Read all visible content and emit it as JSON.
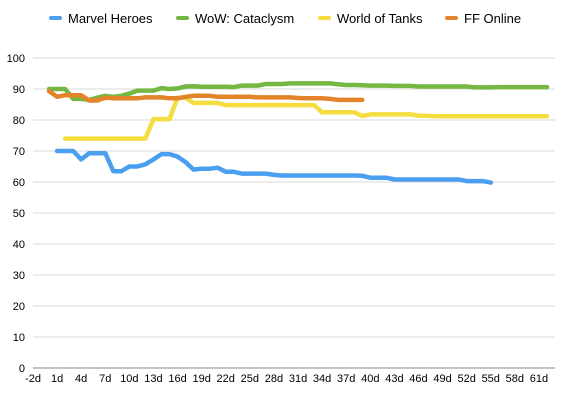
{
  "chart_data": {
    "type": "line",
    "title": "",
    "xlabel": "",
    "ylabel": "",
    "xlim": [
      -2,
      63
    ],
    "ylim": [
      0,
      100
    ],
    "x_ticks": [
      "-2d",
      "1d",
      "4d",
      "7d",
      "10d",
      "13d",
      "16d",
      "19d",
      "22d",
      "25d",
      "28d",
      "31d",
      "34d",
      "37d",
      "40d",
      "43d",
      "46d",
      "49d",
      "52d",
      "55d",
      "58d",
      "61d"
    ],
    "y_ticks": [
      0,
      10,
      20,
      30,
      40,
      50,
      60,
      70,
      80,
      90,
      100
    ],
    "grid": "horizontal",
    "legend_position": "top",
    "series": [
      {
        "name": "Marvel Heroes",
        "color": "#4A9FF0",
        "x": [
          1,
          2,
          3,
          4,
          5,
          6,
          7,
          8,
          9,
          10,
          11,
          12,
          13,
          14,
          15,
          16,
          17,
          18,
          19,
          20,
          21,
          22,
          23,
          24,
          25,
          26,
          27,
          28,
          29,
          30,
          31,
          32,
          33,
          34,
          35,
          36,
          37,
          38,
          39,
          40,
          41,
          42,
          43,
          44,
          45,
          46,
          47,
          48,
          49,
          50,
          51,
          52,
          53,
          54,
          55
        ],
        "y": [
          70,
          70,
          70,
          67.3,
          69.3,
          69.3,
          69.3,
          63.5,
          63.5,
          65,
          65,
          65.7,
          67.3,
          69,
          69,
          68.2,
          66.4,
          64,
          64.3,
          64.3,
          64.6,
          63.3,
          63.3,
          62.7,
          62.7,
          62.7,
          62.7,
          62.3,
          62.1,
          62.1,
          62.1,
          62.1,
          62.1,
          62.1,
          62.1,
          62.1,
          62.1,
          62.1,
          62,
          61.4,
          61.4,
          61.4,
          60.8,
          60.8,
          60.8,
          60.8,
          60.8,
          60.8,
          60.8,
          60.8,
          60.8,
          60.3,
          60.3,
          60.3,
          59.8
        ]
      },
      {
        "name": "WoW: Cataclysm",
        "color": "#74B843",
        "x": [
          0,
          1,
          2,
          3,
          4,
          5,
          6,
          7,
          8,
          9,
          10,
          11,
          12,
          13,
          14,
          15,
          16,
          17,
          18,
          19,
          20,
          21,
          22,
          23,
          24,
          25,
          26,
          27,
          28,
          29,
          30,
          31,
          32,
          33,
          34,
          35,
          36,
          37,
          38,
          39,
          40,
          41,
          42,
          43,
          44,
          45,
          46,
          47,
          48,
          49,
          50,
          51,
          52,
          53,
          54,
          55,
          56,
          57,
          58,
          59,
          60,
          61,
          62
        ],
        "y": [
          90,
          90,
          90,
          86.8,
          86.8,
          86.5,
          87.2,
          87.8,
          87.5,
          87.8,
          88.5,
          89.5,
          89.5,
          89.5,
          90.3,
          90,
          90.2,
          90.8,
          90.9,
          90.7,
          90.7,
          90.7,
          90.7,
          90.6,
          91.1,
          91.1,
          91.1,
          91.6,
          91.6,
          91.6,
          91.8,
          91.8,
          91.8,
          91.8,
          91.8,
          91.8,
          91.5,
          91.3,
          91.3,
          91.2,
          91.1,
          91.1,
          91.1,
          91,
          91,
          91,
          90.8,
          90.8,
          90.8,
          90.8,
          90.8,
          90.8,
          90.8,
          90.5,
          90.5,
          90.5,
          90.6,
          90.6,
          90.6,
          90.6,
          90.6,
          90.6,
          90.6
        ]
      },
      {
        "name": "World of Tanks",
        "color": "#F5DD3F",
        "x": [
          2,
          3,
          4,
          5,
          6,
          7,
          8,
          9,
          10,
          11,
          12,
          13,
          14,
          15,
          16,
          17,
          18,
          19,
          20,
          21,
          22,
          23,
          24,
          25,
          26,
          27,
          28,
          29,
          30,
          31,
          32,
          33,
          34,
          35,
          36,
          37,
          38,
          39,
          40,
          41,
          42,
          43,
          44,
          45,
          46,
          47,
          48,
          49,
          50,
          51,
          52,
          53,
          54,
          55,
          56,
          57,
          58,
          59,
          60,
          61,
          62
        ],
        "y": [
          74,
          74,
          74,
          74,
          74,
          74,
          74,
          74,
          74,
          74,
          74,
          80.3,
          80.3,
          80.3,
          87.2,
          87.2,
          85.5,
          85.5,
          85.5,
          85.5,
          84.8,
          84.8,
          84.8,
          84.8,
          84.8,
          84.8,
          84.8,
          84.8,
          84.8,
          84.8,
          84.8,
          84.8,
          82.5,
          82.5,
          82.5,
          82.5,
          82.5,
          81.3,
          81.8,
          81.8,
          81.8,
          81.8,
          81.8,
          81.8,
          81.4,
          81.4,
          81.2,
          81.2,
          81.2,
          81.2,
          81.2,
          81.2,
          81.2,
          81.2,
          81.2,
          81.2,
          81.2,
          81.2,
          81.2,
          81.2,
          81.2
        ]
      },
      {
        "name": "FF Online",
        "color": "#E4842A",
        "x": [
          0,
          1,
          2,
          3,
          4,
          5,
          6,
          7,
          8,
          9,
          10,
          11,
          12,
          13,
          14,
          15,
          16,
          17,
          18,
          19,
          20,
          21,
          22,
          23,
          24,
          25,
          26,
          27,
          28,
          29,
          30,
          31,
          32,
          33,
          34,
          35,
          36,
          37,
          38,
          39
        ],
        "y": [
          89.3,
          87.5,
          88,
          88,
          88,
          86.3,
          86.3,
          87.2,
          87,
          87,
          87,
          87,
          87.3,
          87.3,
          87.3,
          87,
          87,
          87.5,
          87.8,
          87.8,
          87.8,
          87.5,
          87.5,
          87.5,
          87.5,
          87.5,
          87.3,
          87.3,
          87.3,
          87.3,
          87.3,
          87.1,
          87,
          87,
          87,
          86.8,
          86.5,
          86.5,
          86.5,
          86.5
        ]
      }
    ]
  }
}
